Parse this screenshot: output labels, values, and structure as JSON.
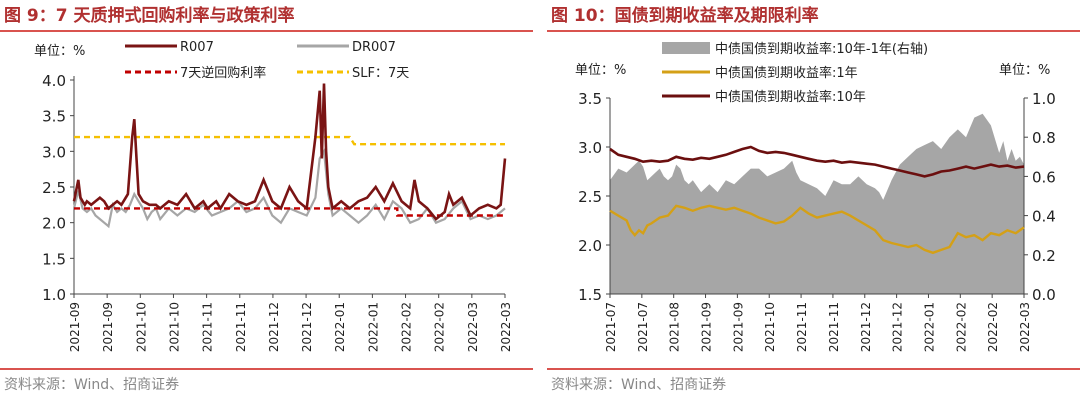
{
  "left": {
    "title": "图 9：7 天质押式回购利率与政策利率",
    "source": "资料来源：Wind、招商证券",
    "chart_data": {
      "type": "line",
      "unit_label": "单位：%",
      "ylim": [
        1.0,
        4.0
      ],
      "y_ticks": [
        "1.0",
        "1.5",
        "2.0",
        "2.5",
        "3.0",
        "3.5",
        "4.0"
      ],
      "x_ticks": [
        "2021-09",
        "2021-09",
        "2021-10",
        "2021-10",
        "2021-11",
        "2021-11",
        "2021-12",
        "2021-12",
        "2022-01",
        "2022-01",
        "2022-02",
        "2022-02",
        "2022-03",
        "2022-03"
      ],
      "x_range": [
        0,
        200
      ],
      "colors": {
        "r007": "#7a1414",
        "dr007": "#a6a6a6",
        "reverse_repo": "#c00000",
        "slf": "#f5c000"
      },
      "legend": [
        "R007",
        "DR007",
        "7天逆回购利率",
        "SLF：7天"
      ],
      "series": [
        {
          "name": "R007",
          "x": [
            0,
            2,
            3,
            4,
            5,
            6,
            8,
            10,
            12,
            14,
            16,
            18,
            20,
            22,
            25,
            27,
            28,
            29,
            30,
            31,
            32,
            35,
            38,
            40,
            44,
            48,
            52,
            56,
            60,
            62,
            64,
            66,
            68,
            72,
            76,
            80,
            84,
            88,
            92,
            96,
            100,
            104,
            108,
            112,
            114,
            115,
            116,
            117,
            118,
            120,
            124,
            128,
            132,
            136,
            140,
            144,
            148,
            152,
            156,
            158,
            160,
            164,
            168,
            172,
            174,
            176,
            180,
            184,
            188,
            192,
            196,
            198,
            200
          ],
          "y": [
            2.3,
            2.6,
            2.35,
            2.3,
            2.25,
            2.3,
            2.25,
            2.3,
            2.35,
            2.3,
            2.2,
            2.25,
            2.3,
            2.25,
            2.4,
            3.2,
            3.45,
            2.9,
            2.4,
            2.35,
            2.3,
            2.25,
            2.25,
            2.2,
            2.3,
            2.25,
            2.4,
            2.2,
            2.3,
            2.2,
            2.25,
            2.3,
            2.2,
            2.4,
            2.3,
            2.25,
            2.3,
            2.6,
            2.3,
            2.2,
            2.5,
            2.3,
            2.2,
            3.2,
            3.85,
            2.9,
            3.95,
            3.0,
            2.5,
            2.2,
            2.3,
            2.2,
            2.3,
            2.35,
            2.5,
            2.3,
            2.55,
            2.3,
            2.2,
            2.6,
            2.3,
            2.2,
            2.05,
            2.15,
            2.4,
            2.25,
            2.35,
            2.1,
            2.2,
            2.25,
            2.2,
            2.25,
            2.9
          ]
        },
        {
          "name": "DR007",
          "x": [
            0,
            2,
            4,
            6,
            8,
            10,
            12,
            14,
            16,
            18,
            20,
            22,
            24,
            26,
            28,
            30,
            32,
            34,
            36,
            38,
            40,
            44,
            48,
            52,
            56,
            60,
            64,
            68,
            72,
            76,
            80,
            84,
            88,
            92,
            96,
            100,
            104,
            108,
            112,
            114,
            116,
            118,
            120,
            124,
            128,
            132,
            136,
            140,
            144,
            148,
            152,
            156,
            160,
            164,
            168,
            172,
            176,
            180,
            184,
            188,
            192,
            196,
            200
          ],
          "y": [
            2.2,
            2.45,
            2.2,
            2.15,
            2.2,
            2.1,
            2.05,
            2.0,
            1.95,
            2.25,
            2.15,
            2.2,
            2.15,
            2.25,
            2.4,
            2.3,
            2.2,
            2.05,
            2.15,
            2.2,
            2.05,
            2.2,
            2.1,
            2.2,
            2.15,
            2.25,
            2.1,
            2.15,
            2.2,
            2.3,
            2.15,
            2.2,
            2.35,
            2.1,
            2.0,
            2.2,
            2.15,
            2.1,
            2.35,
            2.9,
            3.0,
            2.4,
            2.1,
            2.2,
            2.1,
            2.0,
            2.1,
            2.25,
            2.05,
            2.3,
            2.2,
            2.0,
            2.05,
            2.2,
            2.0,
            2.05,
            2.2,
            2.3,
            2.05,
            2.1,
            2.05,
            2.1,
            2.2
          ]
        },
        {
          "name": "7天逆回购利率",
          "x": [
            0,
            150,
            150,
            200
          ],
          "y": [
            2.2,
            2.2,
            2.1,
            2.1
          ]
        },
        {
          "name": "SLF：7天",
          "x": [
            0,
            128,
            130,
            200
          ],
          "y": [
            3.2,
            3.2,
            3.1,
            3.1
          ]
        }
      ]
    }
  },
  "right": {
    "title": "图 10：国债到期收益率及期限利率",
    "source": "资料来源：Wind、招商证券",
    "chart_data": {
      "type": "line",
      "left_unit_label": "单位：%",
      "right_unit_label": "单位：%",
      "ylim_left": [
        1.5,
        3.5
      ],
      "ylim_right": [
        0.0,
        1.0
      ],
      "y_ticks_left": [
        "1.5",
        "2.0",
        "2.5",
        "3.0",
        "3.5"
      ],
      "y_ticks_right": [
        "0.0",
        "0.2",
        "0.4",
        "0.6",
        "0.8",
        "1.0"
      ],
      "x_ticks": [
        "2021-07",
        "2021-07",
        "2021-08",
        "2021-09",
        "2021-09",
        "2021-10",
        "2021-11",
        "2021-11",
        "2021-12",
        "2021-12",
        "2022-01",
        "2022-02",
        "2022-02",
        "2022-03"
      ],
      "x_range": [
        0,
        200
      ],
      "colors": {
        "spread": "#a6a6a6",
        "y1": "#d4a017",
        "y10": "#6b0f0f"
      },
      "legend": [
        "中债国债到期收益率:10年-1年(右轴)",
        "中债国债到期收益率:1年",
        "中债国债到期收益率:10年"
      ],
      "series": [
        {
          "name": "中债国债到期收益率:10年-1年(右轴)",
          "axis": "right",
          "kind": "area",
          "x": [
            0,
            4,
            8,
            12,
            14,
            16,
            18,
            20,
            22,
            24,
            26,
            28,
            30,
            32,
            34,
            36,
            38,
            40,
            44,
            48,
            52,
            56,
            60,
            64,
            68,
            72,
            76,
            80,
            84,
            88,
            90,
            92,
            96,
            100,
            104,
            108,
            112,
            116,
            120,
            124,
            128,
            130,
            132,
            136,
            140,
            144,
            148,
            152,
            156,
            160,
            164,
            168,
            172,
            176,
            180,
            184,
            188,
            190,
            192,
            194,
            196,
            198,
            200
          ],
          "y": [
            0.58,
            0.64,
            0.62,
            0.66,
            0.68,
            0.65,
            0.58,
            0.6,
            0.62,
            0.64,
            0.6,
            0.58,
            0.6,
            0.66,
            0.64,
            0.58,
            0.56,
            0.58,
            0.52,
            0.56,
            0.52,
            0.58,
            0.56,
            0.6,
            0.64,
            0.64,
            0.6,
            0.62,
            0.64,
            0.68,
            0.62,
            0.58,
            0.56,
            0.54,
            0.5,
            0.58,
            0.56,
            0.56,
            0.6,
            0.56,
            0.54,
            0.52,
            0.48,
            0.58,
            0.66,
            0.7,
            0.74,
            0.76,
            0.78,
            0.74,
            0.8,
            0.84,
            0.8,
            0.9,
            0.92,
            0.86,
            0.72,
            0.78,
            0.68,
            0.74,
            0.68,
            0.7,
            0.66
          ]
        },
        {
          "name": "中债国债到期收益率:1年",
          "axis": "left",
          "kind": "line",
          "x": [
            0,
            4,
            8,
            10,
            12,
            14,
            16,
            18,
            20,
            24,
            28,
            32,
            36,
            40,
            44,
            48,
            52,
            56,
            60,
            64,
            68,
            72,
            76,
            80,
            84,
            88,
            92,
            96,
            100,
            104,
            108,
            112,
            116,
            120,
            124,
            128,
            132,
            136,
            140,
            144,
            148,
            152,
            156,
            160,
            164,
            166,
            168,
            172,
            176,
            180,
            184,
            188,
            192,
            196,
            200
          ],
          "y": [
            2.35,
            2.3,
            2.25,
            2.15,
            2.1,
            2.15,
            2.12,
            2.2,
            2.22,
            2.28,
            2.3,
            2.4,
            2.38,
            2.35,
            2.38,
            2.4,
            2.38,
            2.36,
            2.38,
            2.35,
            2.32,
            2.28,
            2.25,
            2.22,
            2.24,
            2.3,
            2.38,
            2.32,
            2.28,
            2.3,
            2.32,
            2.34,
            2.3,
            2.25,
            2.2,
            2.15,
            2.05,
            2.02,
            2.0,
            1.98,
            2.0,
            1.95,
            1.92,
            1.95,
            1.98,
            2.05,
            2.12,
            2.08,
            2.1,
            2.05,
            2.12,
            2.1,
            2.15,
            2.12,
            2.18
          ]
        },
        {
          "name": "中债国债到期收益率:10年",
          "axis": "left",
          "kind": "line",
          "x": [
            0,
            4,
            8,
            12,
            16,
            20,
            24,
            28,
            32,
            36,
            40,
            44,
            48,
            52,
            56,
            60,
            64,
            68,
            72,
            76,
            80,
            84,
            88,
            92,
            96,
            100,
            104,
            108,
            112,
            116,
            120,
            124,
            128,
            132,
            136,
            140,
            144,
            148,
            152,
            156,
            160,
            164,
            168,
            172,
            176,
            180,
            184,
            188,
            192,
            196,
            200
          ],
          "y": [
            2.98,
            2.92,
            2.9,
            2.88,
            2.85,
            2.86,
            2.85,
            2.86,
            2.9,
            2.88,
            2.87,
            2.89,
            2.88,
            2.9,
            2.92,
            2.95,
            2.98,
            3.0,
            2.96,
            2.94,
            2.95,
            2.94,
            2.92,
            2.9,
            2.88,
            2.86,
            2.85,
            2.86,
            2.84,
            2.85,
            2.84,
            2.83,
            2.82,
            2.8,
            2.78,
            2.76,
            2.74,
            2.72,
            2.7,
            2.72,
            2.75,
            2.76,
            2.78,
            2.8,
            2.78,
            2.8,
            2.82,
            2.8,
            2.81,
            2.79,
            2.8
          ]
        }
      ]
    }
  }
}
